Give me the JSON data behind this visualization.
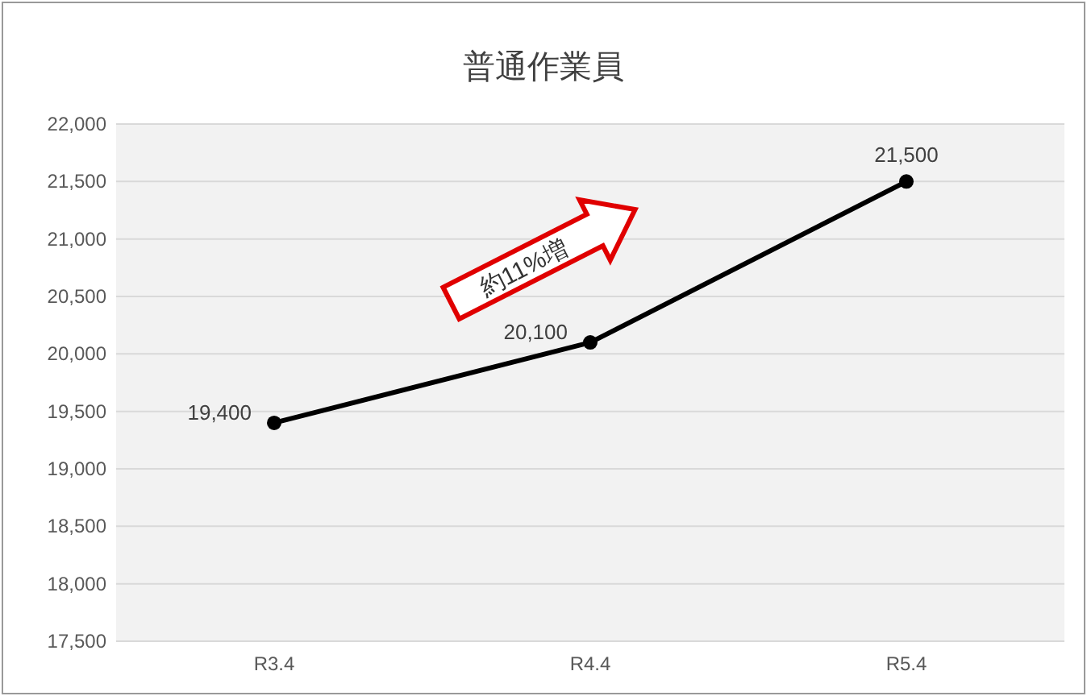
{
  "chart_data": {
    "type": "line",
    "title": "普通作業員",
    "categories": [
      "R3.4",
      "R4.4",
      "R5.4"
    ],
    "series": [
      {
        "color": "#000000",
        "values": [
          19400,
          20100,
          21500
        ],
        "value_labels": [
          "19,400",
          "20,100",
          "21,500"
        ]
      }
    ],
    "ylim": [
      17500,
      22000
    ],
    "yticks": [
      {
        "value": 17500,
        "label": "17,500"
      },
      {
        "value": 18000,
        "label": "18,000"
      },
      {
        "value": 18500,
        "label": "18,500"
      },
      {
        "value": 19000,
        "label": "19,000"
      },
      {
        "value": 19500,
        "label": "19,500"
      },
      {
        "value": 20000,
        "label": "20,000"
      },
      {
        "value": 20500,
        "label": "20,500"
      },
      {
        "value": 21000,
        "label": "21,000"
      },
      {
        "value": 21500,
        "label": "21,500"
      },
      {
        "value": 22000,
        "label": "22,000"
      }
    ],
    "grid": "y",
    "marker": "circle",
    "line_style": "solid",
    "annotations": [
      "約11%増"
    ]
  }
}
